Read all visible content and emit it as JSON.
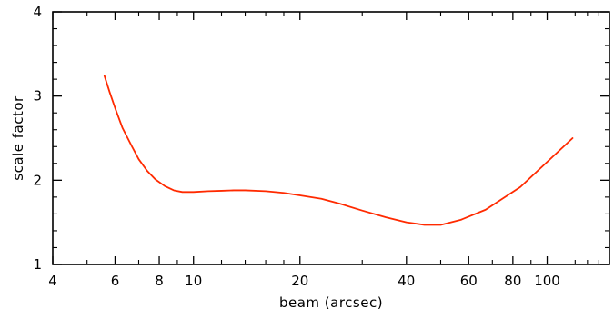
{
  "chart_data": {
    "type": "line",
    "title": "",
    "xlabel": "beam (arcsec)",
    "ylabel": "scale factor",
    "x_scale": "log",
    "xlim": [
      4,
      150
    ],
    "ylim": [
      1,
      4
    ],
    "x_ticks": [
      4,
      6,
      8,
      10,
      20,
      40,
      60,
      80,
      100
    ],
    "y_ticks": [
      1,
      2,
      3,
      4
    ],
    "grid": false,
    "series": [
      {
        "color": "#ff2a00",
        "x": [
          5.6,
          5.8,
          6.0,
          6.3,
          6.7,
          7.0,
          7.4,
          7.8,
          8.3,
          8.8,
          9.3,
          10.0,
          11.0,
          12.0,
          13.0,
          14.0,
          16.0,
          18.0,
          20.0,
          23.0,
          26.0,
          30.0,
          35.0,
          40.0,
          45.0,
          50.0,
          57.0,
          67.0,
          84.0,
          118.0
        ],
        "y": [
          3.24,
          3.04,
          2.86,
          2.62,
          2.4,
          2.25,
          2.11,
          2.01,
          1.93,
          1.88,
          1.86,
          1.86,
          1.87,
          1.875,
          1.88,
          1.88,
          1.87,
          1.85,
          1.82,
          1.78,
          1.72,
          1.64,
          1.56,
          1.5,
          1.47,
          1.47,
          1.53,
          1.65,
          1.92,
          2.5
        ]
      }
    ]
  }
}
